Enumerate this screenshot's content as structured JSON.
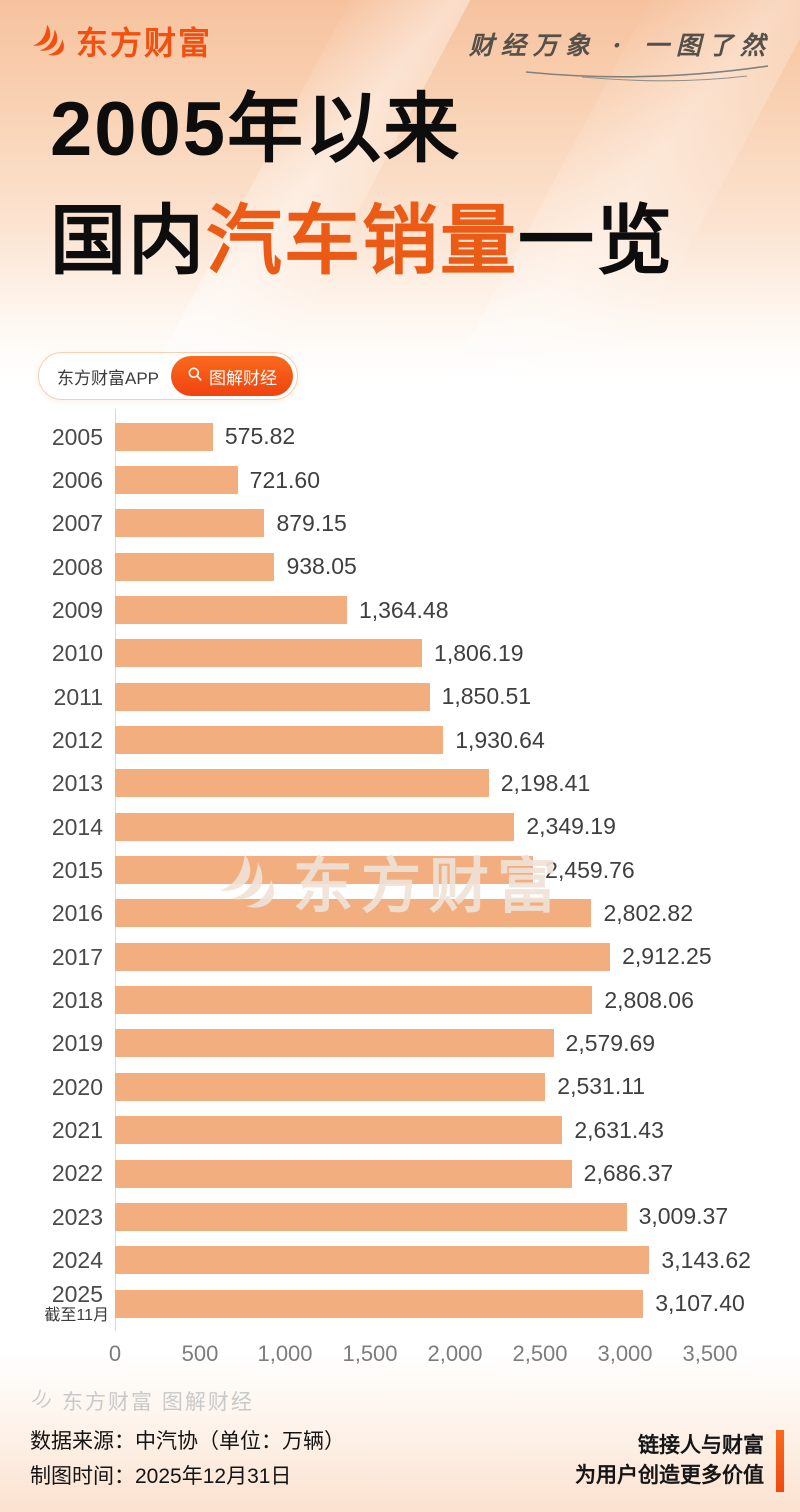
{
  "header": {
    "logo_text": "东方财富",
    "tagline": "财经万象 · 一图了然"
  },
  "title": {
    "line1": "2005年以来",
    "line2_prefix": "国内",
    "line2_highlight": "汽车销量",
    "line2_suffix": "一览"
  },
  "badge": {
    "app_label": "东方财富APP",
    "tag_label": "图解财经"
  },
  "watermark": {
    "text": "东方财富"
  },
  "chart_data": {
    "type": "bar",
    "orientation": "horizontal",
    "title": "2005年以来国内汽车销量一览",
    "unit": "万辆",
    "categories": [
      "2005",
      "2006",
      "2007",
      "2008",
      "2009",
      "2010",
      "2011",
      "2012",
      "2013",
      "2014",
      "2015",
      "2016",
      "2017",
      "2018",
      "2019",
      "2020",
      "2021",
      "2022",
      "2023",
      "2024",
      "2025"
    ],
    "values": [
      575.82,
      721.6,
      879.15,
      938.05,
      1364.48,
      1806.19,
      1850.51,
      1930.64,
      2198.41,
      2349.19,
      2459.76,
      2802.82,
      2912.25,
      2808.06,
      2579.69,
      2531.11,
      2631.43,
      2686.37,
      3009.37,
      3143.62,
      3107.4
    ],
    "value_labels": [
      "575.82",
      "721.60",
      "879.15",
      "938.05",
      "1,364.48",
      "1,806.19",
      "1,850.51",
      "1,930.64",
      "2,198.41",
      "2,349.19",
      "2,459.76",
      "2,802.82",
      "2,912.25",
      "2,808.06",
      "2,579.69",
      "2,531.11",
      "2,631.43",
      "2,686.37",
      "3,009.37",
      "3,143.62",
      "3,107.40"
    ],
    "footnote": {
      "index": 20,
      "text": "截至11月"
    },
    "x_ticks": [
      "0",
      "500",
      "1,000",
      "1,500",
      "2,000",
      "2,500",
      "3,000",
      "3,500"
    ],
    "xlim": [
      0,
      3500
    ],
    "grid": false,
    "bar_color": "#F2AE7E"
  },
  "footer": {
    "watermark": "东方财富 图解财经",
    "source_line": "数据来源：中汽协（单位：万辆）",
    "date_line": "制图时间：2025年12月31日",
    "slogan_line1": "链接人与财富",
    "slogan_line2": "为用户创造更多价值"
  },
  "colors": {
    "brand_orange": "#F1500F",
    "title_highlight": "#EC5B16",
    "bar": "#F2AE7E",
    "axis_text": "#7C7C7C",
    "value_text": "#3F3F3F",
    "slogan_bar": "#F65A10"
  }
}
